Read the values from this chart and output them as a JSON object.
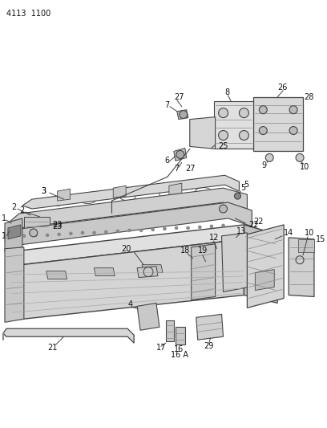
{
  "page_id": "4113  1100",
  "bg": "#ffffff",
  "lc": "#444444",
  "tc": "#111111",
  "figsize": [
    4.08,
    5.33
  ],
  "dpi": 100
}
